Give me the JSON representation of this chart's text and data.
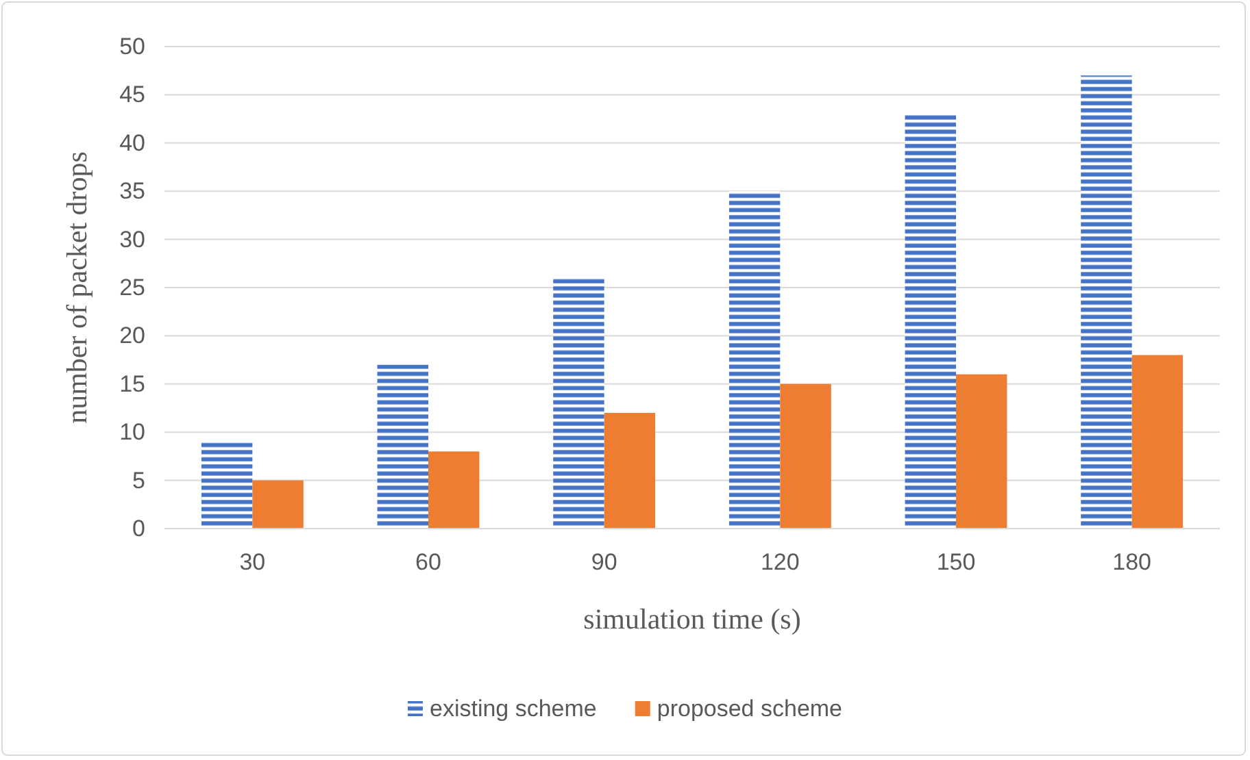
{
  "chart_data": {
    "type": "bar",
    "xlabel": "simulation time (s)",
    "ylabel": "number of packet drops",
    "categories": [
      "30",
      "60",
      "90",
      "120",
      "150",
      "180"
    ],
    "series": [
      {
        "name": "existing scheme",
        "color": "#4472c4",
        "values": [
          9,
          17,
          26,
          35,
          43,
          47
        ]
      },
      {
        "name": "proposed scheme",
        "color": "#ed7d31",
        "values": [
          5,
          8,
          12,
          15,
          16,
          18
        ]
      }
    ],
    "ylim": [
      0,
      50
    ],
    "yticks": [
      0,
      5,
      10,
      15,
      20,
      25,
      30,
      35,
      40,
      45,
      50
    ],
    "grid": "y",
    "legend": "bottom"
  }
}
